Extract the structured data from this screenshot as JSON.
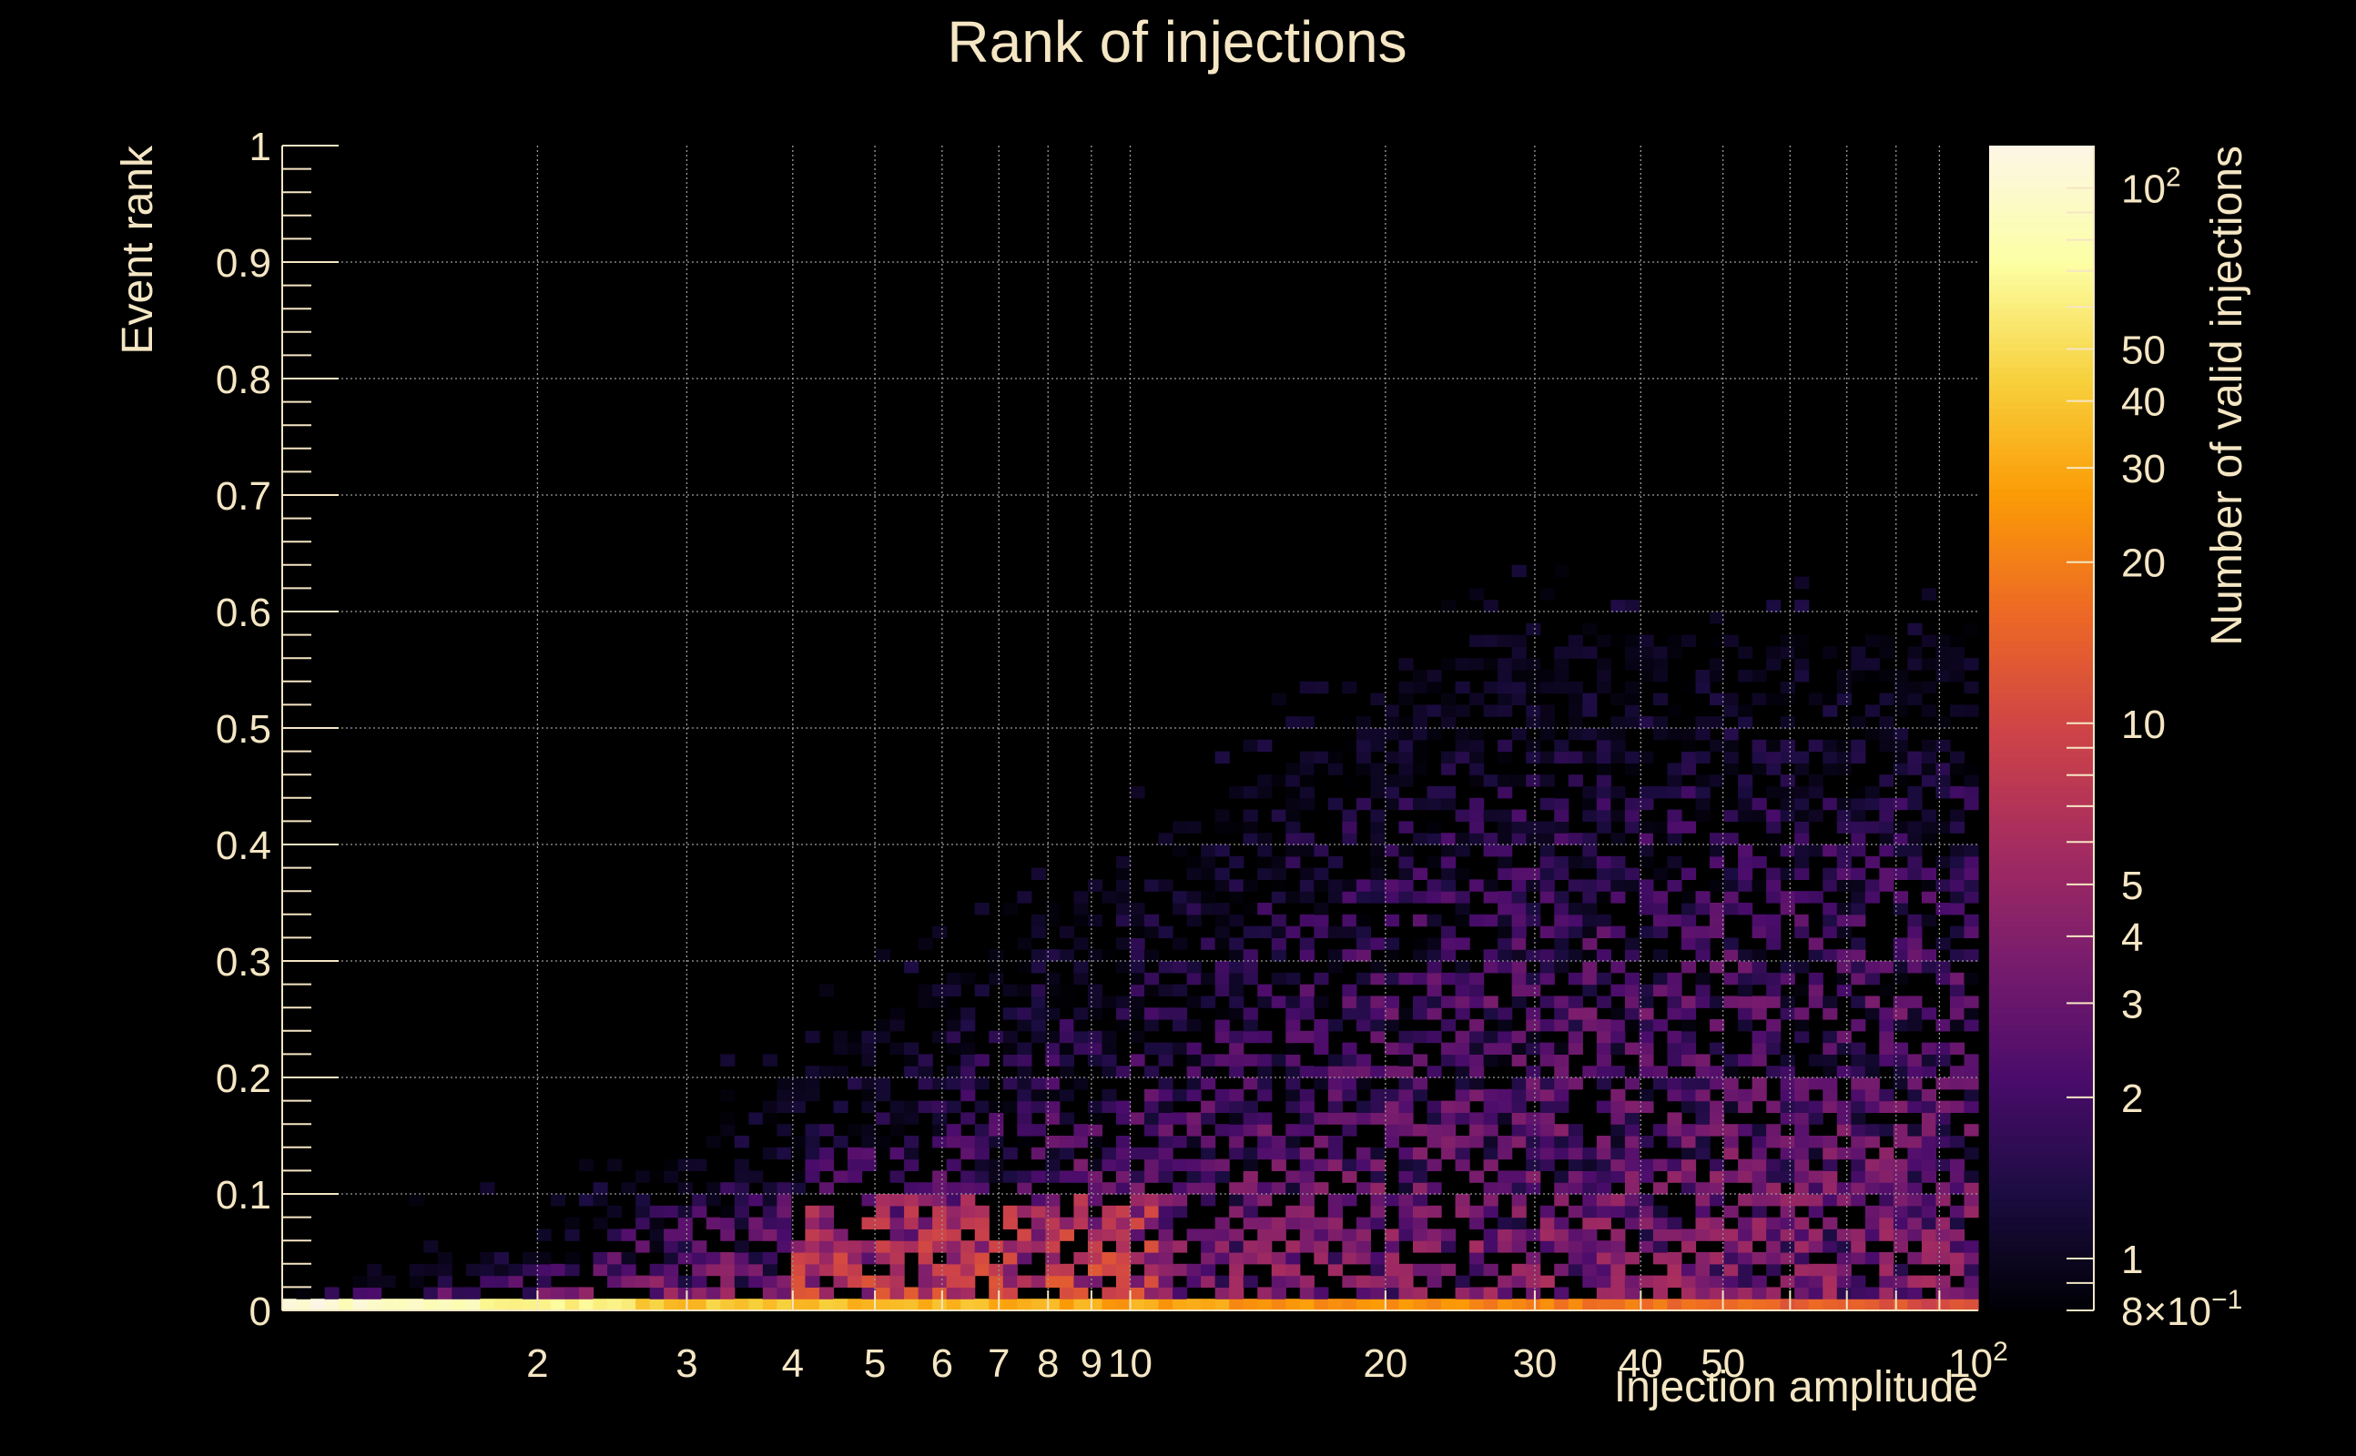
{
  "chart_data": {
    "type": "heatmap",
    "title": "Rank of injections",
    "xlabel": "Injection amplitude",
    "ylabel": "Event rank",
    "zlabel": "Number of valid injections",
    "x_scale": "log",
    "xlim": [
      1,
      100
    ],
    "ylim": [
      0,
      1
    ],
    "z_scale": "log",
    "zlim": [
      0.8,
      120
    ],
    "grid": true,
    "x_ticks": [
      {
        "v": 2,
        "label": "2"
      },
      {
        "v": 3,
        "label": "3"
      },
      {
        "v": 4,
        "label": "4"
      },
      {
        "v": 5,
        "label": "5"
      },
      {
        "v": 6,
        "label": "6"
      },
      {
        "v": 7,
        "label": "7"
      },
      {
        "v": 8,
        "label": "8"
      },
      {
        "v": 9,
        "label": "9"
      },
      {
        "v": 10,
        "label": "10"
      },
      {
        "v": 20,
        "label": "20"
      },
      {
        "v": 30,
        "label": "30"
      },
      {
        "v": 40,
        "label": "40"
      },
      {
        "v": 50,
        "label": "50"
      },
      {
        "v": 100,
        "label": "10",
        "sup": "2"
      }
    ],
    "y_ticks": [
      {
        "v": 0,
        "label": "0"
      },
      {
        "v": 0.1,
        "label": "0.1"
      },
      {
        "v": 0.2,
        "label": "0.2"
      },
      {
        "v": 0.3,
        "label": "0.3"
      },
      {
        "v": 0.4,
        "label": "0.4"
      },
      {
        "v": 0.5,
        "label": "0.5"
      },
      {
        "v": 0.6,
        "label": "0.6"
      },
      {
        "v": 0.7,
        "label": "0.7"
      },
      {
        "v": 0.8,
        "label": "0.8"
      },
      {
        "v": 0.9,
        "label": "0.9"
      },
      {
        "v": 1,
        "label": "1"
      }
    ],
    "z_ticks": [
      {
        "v": 0.8,
        "label": "8×10",
        "sup": "−1"
      },
      {
        "v": 1,
        "label": "1"
      },
      {
        "v": 2,
        "label": "2"
      },
      {
        "v": 3,
        "label": "3"
      },
      {
        "v": 4,
        "label": "4"
      },
      {
        "v": 5,
        "label": "5"
      },
      {
        "v": 10,
        "label": "10"
      },
      {
        "v": 20,
        "label": "20"
      },
      {
        "v": 30,
        "label": "30"
      },
      {
        "v": 40,
        "label": "40"
      },
      {
        "v": 50,
        "label": "50"
      },
      {
        "v": 100,
        "label": "10",
        "sup": "2"
      }
    ],
    "colormap": [
      "#000004",
      "#1b0c41",
      "#4a0c6b",
      "#781c6d",
      "#a52c60",
      "#cf4446",
      "#ed6925",
      "#fb9b06",
      "#f7d13d",
      "#fcffa4"
    ],
    "colormap_top": "#fdf6e6",
    "density": {
      "rows": 100,
      "row_zero": "0.75 to 110 valid injections along the rank = 0 row, highest at amplitudes 1 to 3",
      "peak_region": "amplitude 5 to 10, rank 0.01 to 0.1, about 5 to 12 injections",
      "upper_edge": "rank reaches about 0.06 at amplitude 2, 0.25 at 5, 0.4 at 10 and 0.55 at 30"
    }
  }
}
